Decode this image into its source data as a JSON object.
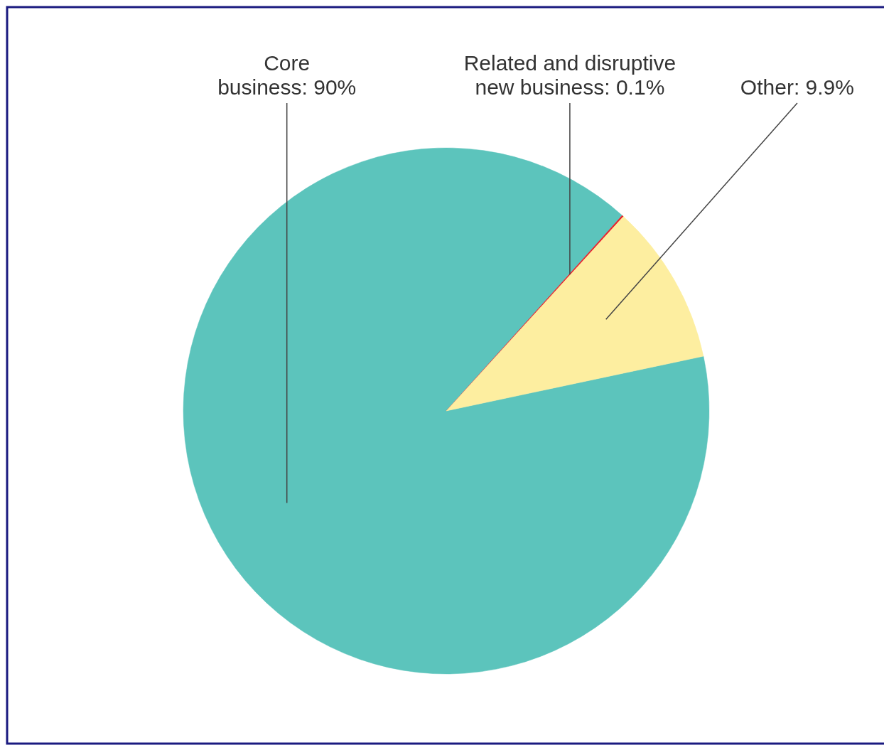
{
  "chart_data": {
    "type": "pie",
    "categories": [
      "Core business",
      "Related and disruptive new business",
      "Other"
    ],
    "values": [
      90,
      0.1,
      9.9
    ],
    "value_labels": [
      "90%",
      "0.1%",
      "9.9%"
    ],
    "colors": [
      "#5cc4bc",
      "#e8202a",
      "#fdeea0"
    ]
  }
}
